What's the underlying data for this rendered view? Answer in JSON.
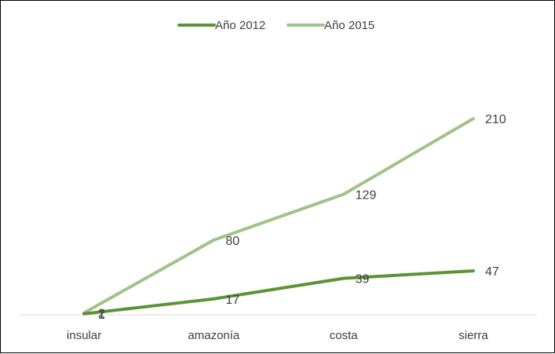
{
  "chart_data": {
    "type": "line",
    "categories": [
      "insular",
      "amazonía",
      "costa",
      "sierra"
    ],
    "series": [
      {
        "name": "Año 2012",
        "values": [
          1,
          17,
          39,
          47
        ],
        "color": "#5b9337",
        "data_labels": [
          "1",
          "17",
          "39",
          "47"
        ]
      },
      {
        "name": "Año 2015",
        "values": [
          2,
          80,
          129,
          210
        ],
        "color": "#9fc38a",
        "data_labels": [
          "2",
          "80",
          "129",
          "210"
        ]
      }
    ],
    "ylim": [
      0,
      300
    ],
    "y_axis_visible": false,
    "grid": false,
    "legend_position": "top-center",
    "title": "",
    "xlabel": "",
    "ylabel": ""
  }
}
